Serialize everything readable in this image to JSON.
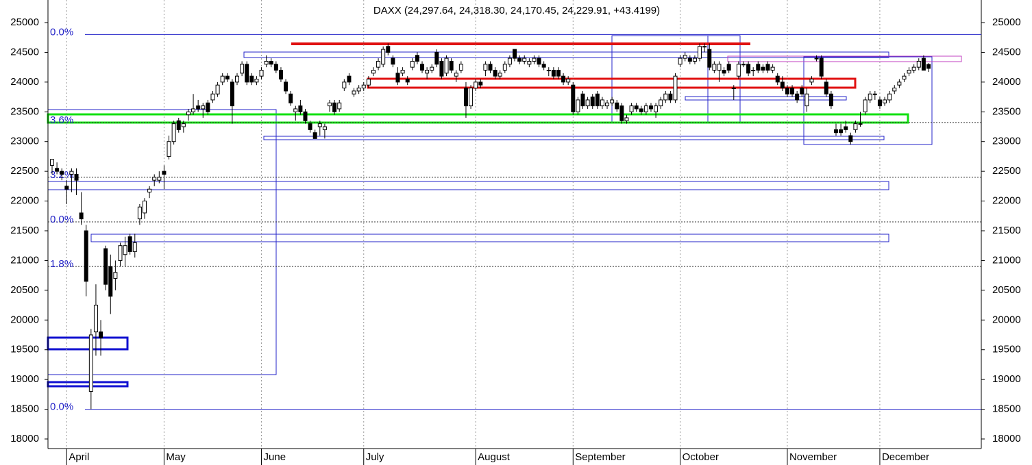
{
  "chart_data": {
    "type": "candlestick",
    "title": "DAXX (24,297.64, 24,318.30, 24,170.45, 24,229.91, +43.4199)",
    "up_color": "#ffffff",
    "down_color": "#000000",
    "edge_color": "#000000",
    "ylim": [
      18000,
      25000
    ],
    "yticks": [
      18000,
      18500,
      19000,
      19500,
      20000,
      20500,
      21000,
      21500,
      22000,
      22500,
      23000,
      23500,
      24000,
      24500,
      25000
    ],
    "categories": [
      null,
      null,
      null,
      "April",
      null,
      null,
      null,
      null,
      null,
      null,
      null,
      null,
      null,
      null,
      null,
      null,
      null,
      null,
      null,
      null,
      null,
      null,
      null,
      "May",
      null,
      null,
      null,
      null,
      null,
      null,
      null,
      null,
      null,
      null,
      null,
      null,
      null,
      null,
      null,
      null,
      null,
      null,
      null,
      "June",
      null,
      null,
      null,
      null,
      null,
      null,
      null,
      null,
      null,
      null,
      null,
      null,
      null,
      null,
      null,
      null,
      null,
      null,
      null,
      null,
      "July",
      null,
      null,
      null,
      null,
      null,
      null,
      null,
      null,
      null,
      null,
      null,
      null,
      null,
      null,
      null,
      null,
      null,
      null,
      null,
      null,
      null,
      null,
      "August",
      null,
      null,
      null,
      null,
      null,
      null,
      null,
      null,
      null,
      null,
      null,
      null,
      null,
      null,
      null,
      null,
      null,
      null,
      null,
      "September",
      null,
      null,
      null,
      null,
      null,
      null,
      null,
      null,
      null,
      null,
      null,
      null,
      null,
      null,
      null,
      null,
      null,
      null,
      null,
      null,
      null,
      "October",
      null,
      null,
      null,
      null,
      null,
      null,
      null,
      null,
      null,
      null,
      null,
      null,
      null,
      null,
      null,
      null,
      null,
      null,
      null,
      null,
      null,
      "November",
      null,
      null,
      null,
      null,
      null,
      null,
      null,
      null,
      null,
      null,
      null,
      null,
      null,
      null,
      null,
      null,
      null,
      null,
      "December",
      null,
      null,
      null,
      null,
      null,
      null,
      null,
      null,
      null,
      null
    ],
    "open": [
      22600,
      22550,
      22500,
      22250,
      22450,
      22450,
      21800,
      21500,
      18800,
      19800,
      19800,
      21200,
      20900,
      20700,
      21000,
      21100,
      21400,
      21150,
      21700,
      21800,
      22150,
      22350,
      22350,
      22500,
      22750,
      23000,
      23350,
      23250,
      23450,
      23500,
      23600,
      23550,
      23650,
      23700,
      23800,
      24000,
      24100,
      24000,
      24000,
      24150,
      24300,
      24100,
      24000,
      24100,
      24300,
      24350,
      24300,
      24200,
      24000,
      23800,
      23500,
      23600,
      23500,
      23300,
      23150,
      23250,
      23200,
      23600,
      23650,
      23550,
      23900,
      24100,
      23800,
      23850,
      23900,
      23950,
      24150,
      24250,
      24300,
      24600,
      24400,
      24150,
      24150,
      24050,
      24250,
      24450,
      24300,
      24150,
      24200,
      24500,
      24350,
      24150,
      24350,
      24100,
      24200,
      23900,
      23600,
      23900,
      24000,
      24200,
      24300,
      24200,
      24100,
      24200,
      24300,
      24550,
      24400,
      24350,
      24300,
      24350,
      24400,
      24300,
      24200,
      24200,
      24200,
      24100,
      24000,
      23950,
      23500,
      23800,
      23600,
      23750,
      23800,
      23600,
      23600,
      23650,
      23650,
      23600,
      23350,
      23500,
      23600,
      23550,
      23500,
      23600,
      23500,
      23600,
      23700,
      23800,
      23700,
      24300,
      24400,
      24400,
      24350,
      24400,
      24600,
      24550,
      24200,
      24200,
      24200,
      24300,
      23900,
      24100,
      24300,
      24300,
      24200,
      24300,
      24250,
      24300,
      24200,
      24100,
      24000,
      23900,
      23900,
      23800,
      23900,
      23600,
      24000,
      24400,
      24400,
      24000,
      23800,
      23200,
      23200,
      23250,
      23100,
      23200,
      23300,
      23500,
      23700,
      23800,
      23700,
      23650,
      23700,
      23850,
      23950,
      24050,
      24150,
      24200,
      24250,
      24400,
      24297.64
    ],
    "high": [
      22700,
      22650,
      22550,
      22350,
      22550,
      22550,
      22150,
      21600,
      19850,
      20600,
      20000,
      21250,
      21100,
      21000,
      21300,
      21400,
      21450,
      21450,
      21950,
      22050,
      22250,
      22450,
      22500,
      22600,
      23100,
      23350,
      23400,
      23350,
      23550,
      23800,
      23700,
      23650,
      23700,
      23850,
      24000,
      24150,
      24150,
      24050,
      24150,
      24350,
      24350,
      24150,
      24100,
      24250,
      24450,
      24400,
      24350,
      24250,
      24050,
      23850,
      23600,
      23700,
      23550,
      23350,
      23200,
      23350,
      23300,
      23700,
      23700,
      23700,
      24050,
      24150,
      23900,
      23950,
      24000,
      24100,
      24250,
      24400,
      24600,
      24650,
      24450,
      24250,
      24250,
      24100,
      24400,
      24500,
      24350,
      24250,
      24300,
      24550,
      24400,
      24450,
      24400,
      24200,
      24350,
      24000,
      23950,
      24050,
      24050,
      24350,
      24350,
      24250,
      24200,
      24350,
      24450,
      24550,
      24450,
      24450,
      24400,
      24450,
      24450,
      24350,
      24250,
      24250,
      24250,
      24150,
      24100,
      24000,
      23750,
      23850,
      23750,
      23800,
      23850,
      23750,
      23700,
      23750,
      23700,
      23650,
      23450,
      23650,
      23650,
      23600,
      23650,
      23650,
      23650,
      23750,
      23850,
      23850,
      24150,
      24450,
      24500,
      24450,
      24450,
      24650,
      24650,
      24650,
      24350,
      24350,
      24250,
      24350,
      23950,
      24350,
      24350,
      24350,
      24250,
      24350,
      24300,
      24350,
      24300,
      24150,
      24100,
      23950,
      23950,
      23850,
      23950,
      23900,
      24100,
      24450,
      24450,
      24050,
      23850,
      23300,
      23300,
      23350,
      23150,
      23350,
      23500,
      23750,
      23850,
      23850,
      23750,
      23750,
      23850,
      23950,
      24050,
      24150,
      24250,
      24300,
      24400,
      24450,
      24318.3
    ],
    "low": [
      22450,
      22450,
      22350,
      21950,
      22150,
      22100,
      21600,
      20400,
      18500,
      19400,
      19400,
      20500,
      20100,
      20500,
      20900,
      20900,
      21100,
      21050,
      21600,
      21700,
      22050,
      22250,
      22300,
      22200,
      22700,
      22950,
      23150,
      23150,
      23350,
      23450,
      23500,
      23400,
      23450,
      23650,
      23750,
      23950,
      24000,
      23300,
      23950,
      24100,
      23950,
      23950,
      23950,
      24050,
      24250,
      24250,
      24150,
      24000,
      23800,
      23600,
      23350,
      23450,
      23300,
      23150,
      23050,
      23100,
      23050,
      23500,
      23450,
      23500,
      23850,
      23950,
      23750,
      23800,
      23850,
      23900,
      24100,
      24200,
      24250,
      24450,
      24250,
      23950,
      24100,
      23950,
      24200,
      24300,
      24150,
      24050,
      24150,
      24250,
      24050,
      24100,
      24150,
      24000,
      24150,
      23400,
      23550,
      23850,
      23900,
      24100,
      24150,
      24050,
      24050,
      24150,
      24250,
      24350,
      24300,
      24300,
      24250,
      24300,
      24250,
      24200,
      24100,
      24050,
      24050,
      23950,
      23950,
      23450,
      23450,
      23550,
      23550,
      23550,
      23550,
      23550,
      23550,
      23600,
      23500,
      23300,
      23300,
      23450,
      23500,
      23450,
      23450,
      23500,
      23400,
      23550,
      23650,
      23650,
      23650,
      24250,
      24350,
      24300,
      24300,
      24350,
      24500,
      24200,
      24150,
      24000,
      24100,
      24150,
      23700,
      24050,
      24250,
      24100,
      24100,
      24150,
      24150,
      24150,
      24150,
      23950,
      23850,
      23750,
      23750,
      23650,
      23750,
      23500,
      23950,
      24350,
      24050,
      23750,
      23550,
      23100,
      23100,
      23150,
      22950,
      23150,
      23250,
      23450,
      23650,
      23700,
      23550,
      23600,
      23650,
      23800,
      23900,
      24000,
      24100,
      24150,
      24200,
      24200,
      24170.45
    ],
    "close": [
      22700,
      22500,
      22450,
      22200,
      22500,
      22350,
      21700,
      20650,
      19750,
      20250,
      19700,
      20600,
      20400,
      20800,
      21250,
      21250,
      21150,
      21300,
      21900,
      22000,
      22200,
      22400,
      22400,
      22450,
      23000,
      23300,
      23200,
      23300,
      23500,
      23550,
      23550,
      23600,
      23500,
      23800,
      23950,
      24100,
      24050,
      23600,
      24100,
      24300,
      24000,
      24000,
      24050,
      24200,
      24350,
      24300,
      24200,
      24050,
      23850,
      23650,
      23550,
      23500,
      23350,
      23200,
      23050,
      23300,
      23250,
      23650,
      23500,
      23650,
      24000,
      24000,
      23850,
      23900,
      23950,
      24050,
      24200,
      24350,
      24550,
      24500,
      24300,
      24000,
      24200,
      24000,
      24350,
      24350,
      24200,
      24200,
      24250,
      24300,
      24100,
      24400,
      24200,
      24150,
      24300,
      23600,
      23900,
      24000,
      23950,
      24300,
      24200,
      24100,
      24150,
      24300,
      24400,
      24400,
      24350,
      24400,
      24350,
      24400,
      24300,
      24250,
      24200,
      24100,
      24100,
      24000,
      24050,
      23500,
      23700,
      23600,
      23700,
      23600,
      23600,
      23700,
      23650,
      23700,
      23550,
      23350,
      23400,
      23600,
      23550,
      23500,
      23600,
      23550,
      23600,
      23700,
      23800,
      23700,
      24100,
      24400,
      24450,
      24350,
      24400,
      24600,
      24600,
      24250,
      24300,
      24300,
      24150,
      24200,
      23900,
      24300,
      24300,
      24150,
      24200,
      24200,
      24200,
      24200,
      24250,
      24000,
      23900,
      23800,
      23800,
      23700,
      23800,
      23800,
      24050,
      24400,
      24100,
      23800,
      23600,
      23150,
      23150,
      23200,
      23000,
      23300,
      23300,
      23700,
      23800,
      23800,
      23600,
      23700,
      23800,
      23900,
      24000,
      24100,
      24200,
      24250,
      24350,
      24200,
      24229.91
    ],
    "levels": [
      {
        "label": "0.0%",
        "value": 24800,
        "style": "solid"
      },
      {
        "label": "3.6%",
        "value": 23320,
        "style": "dotted"
      },
      {
        "label": "3.2%",
        "value": 22400,
        "style": "dotted"
      },
      {
        "label": "0.0%",
        "value": 21650,
        "style": "dotted"
      },
      {
        "label": "1.8%",
        "value": 20900,
        "style": "dotted"
      },
      {
        "label": "0.0%",
        "value": 18500,
        "style": "solid"
      }
    ]
  }
}
